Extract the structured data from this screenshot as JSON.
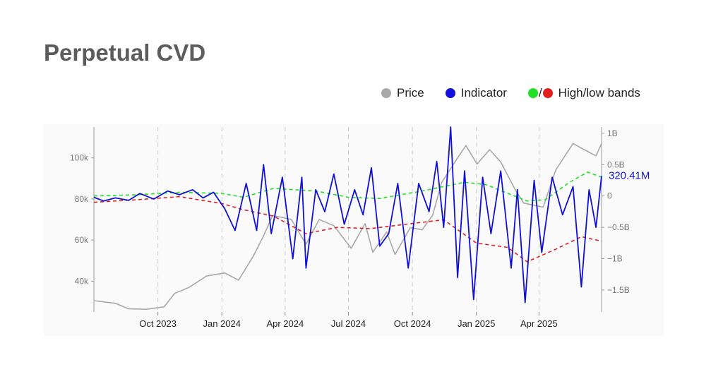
{
  "title": "Perpetual CVD",
  "legend": {
    "price": "Price",
    "indicator": "Indicator",
    "slash": "/",
    "bands": "High/low bands"
  },
  "colors": {
    "price": "#a8a8a8",
    "indicator": "#1010d8",
    "high_band": "#22e022",
    "low_band": "#e02020",
    "title": "#5c5c5c"
  },
  "chart_data": {
    "type": "line",
    "x_start": "2023-07-01",
    "x_end": "2025-06-30",
    "x_ticks": [
      {
        "date": "2023-10-01",
        "label": "Oct 2023"
      },
      {
        "date": "2024-01-01",
        "label": "Jan 2024"
      },
      {
        "date": "2024-04-01",
        "label": "Apr 2024"
      },
      {
        "date": "2024-07-01",
        "label": "Jul 2024"
      },
      {
        "date": "2024-10-01",
        "label": "Oct 2024"
      },
      {
        "date": "2025-01-01",
        "label": "Jan 2025"
      },
      {
        "date": "2025-04-01",
        "label": "Apr 2025"
      }
    ],
    "y_left": {
      "range": [
        25000,
        115000
      ],
      "ticks": [
        {
          "v": 40000,
          "label": "40k"
        },
        {
          "v": 60000,
          "label": "60k"
        },
        {
          "v": 80000,
          "label": "80k"
        },
        {
          "v": 100000,
          "label": "100k"
        }
      ]
    },
    "y_right": {
      "range": [
        -1850000000,
        1100000000
      ],
      "ticks": [
        {
          "v": 1000000000,
          "label": "1B"
        },
        {
          "v": 500000000,
          "label": "0.5B"
        },
        {
          "v": 0,
          "label": "0"
        },
        {
          "v": -500000000,
          "label": "−0.5B"
        },
        {
          "v": -1000000000,
          "label": "−1B"
        },
        {
          "v": -1500000000,
          "label": "−1.5B"
        }
      ]
    },
    "last_value_label": "320.41M",
    "series": [
      {
        "name": "Price",
        "axis": "left",
        "points": [
          [
            "2023-07-01",
            30500
          ],
          [
            "2023-08-01",
            29200
          ],
          [
            "2023-08-20",
            26500
          ],
          [
            "2023-09-15",
            26300
          ],
          [
            "2023-10-10",
            27500
          ],
          [
            "2023-10-25",
            34000
          ],
          [
            "2023-11-15",
            37000
          ],
          [
            "2023-12-10",
            42500
          ],
          [
            "2024-01-05",
            44000
          ],
          [
            "2024-01-25",
            40500
          ],
          [
            "2024-02-15",
            52000
          ],
          [
            "2024-03-01",
            62000
          ],
          [
            "2024-03-14",
            72000
          ],
          [
            "2024-04-10",
            70000
          ],
          [
            "2024-05-01",
            58000
          ],
          [
            "2024-05-20",
            70000
          ],
          [
            "2024-06-10",
            67000
          ],
          [
            "2024-07-05",
            56000
          ],
          [
            "2024-07-25",
            68000
          ],
          [
            "2024-08-05",
            54000
          ],
          [
            "2024-08-25",
            64000
          ],
          [
            "2024-09-06",
            53000
          ],
          [
            "2024-09-28",
            66000
          ],
          [
            "2024-10-15",
            65000
          ],
          [
            "2024-10-30",
            72000
          ],
          [
            "2024-11-12",
            88000
          ],
          [
            "2024-12-05",
            100000
          ],
          [
            "2024-12-17",
            106000
          ],
          [
            "2025-01-02",
            97000
          ],
          [
            "2025-01-20",
            104000
          ],
          [
            "2025-02-05",
            98000
          ],
          [
            "2025-02-25",
            85000
          ],
          [
            "2025-03-10",
            78000
          ],
          [
            "2025-04-07",
            76000
          ],
          [
            "2025-04-25",
            94000
          ],
          [
            "2025-05-20",
            107000
          ],
          [
            "2025-06-05",
            104000
          ],
          [
            "2025-06-22",
            101000
          ],
          [
            "2025-06-30",
            107000
          ]
        ]
      },
      {
        "name": "Indicator",
        "axis": "right",
        "points": [
          [
            "2023-07-01",
            -20000000
          ],
          [
            "2023-07-15",
            -80000000
          ],
          [
            "2023-08-01",
            -30000000
          ],
          [
            "2023-08-20",
            -70000000
          ],
          [
            "2023-09-05",
            40000000
          ],
          [
            "2023-09-25",
            -50000000
          ],
          [
            "2023-10-15",
            80000000
          ],
          [
            "2023-11-01",
            20000000
          ],
          [
            "2023-11-20",
            100000000
          ],
          [
            "2023-12-05",
            -30000000
          ],
          [
            "2023-12-20",
            60000000
          ],
          [
            "2024-01-05",
            -200000000
          ],
          [
            "2024-01-20",
            -550000000
          ],
          [
            "2024-02-05",
            200000000
          ],
          [
            "2024-02-20",
            -550000000
          ],
          [
            "2024-03-01",
            500000000
          ],
          [
            "2024-03-12",
            -600000000
          ],
          [
            "2024-03-28",
            300000000
          ],
          [
            "2024-04-12",
            -1000000000
          ],
          [
            "2024-04-25",
            300000000
          ],
          [
            "2024-05-01",
            -1150000000
          ],
          [
            "2024-05-15",
            100000000
          ],
          [
            "2024-05-28",
            -250000000
          ],
          [
            "2024-06-10",
            350000000
          ],
          [
            "2024-06-25",
            -450000000
          ],
          [
            "2024-07-10",
            100000000
          ],
          [
            "2024-07-22",
            -300000000
          ],
          [
            "2024-08-03",
            450000000
          ],
          [
            "2024-08-15",
            -800000000
          ],
          [
            "2024-08-28",
            -600000000
          ],
          [
            "2024-09-10",
            200000000
          ],
          [
            "2024-09-25",
            -1150000000
          ],
          [
            "2024-10-10",
            200000000
          ],
          [
            "2024-10-25",
            -250000000
          ],
          [
            "2024-11-05",
            550000000
          ],
          [
            "2024-11-15",
            -500000000
          ],
          [
            "2024-11-25",
            1100000000
          ],
          [
            "2024-12-05",
            -1300000000
          ],
          [
            "2024-12-15",
            400000000
          ],
          [
            "2024-12-28",
            -1650000000
          ],
          [
            "2025-01-10",
            300000000
          ],
          [
            "2025-01-22",
            -600000000
          ],
          [
            "2025-02-05",
            400000000
          ],
          [
            "2025-02-20",
            -1150000000
          ],
          [
            "2025-03-01",
            100000000
          ],
          [
            "2025-03-12",
            -1700000000
          ],
          [
            "2025-03-25",
            250000000
          ],
          [
            "2025-04-05",
            -900000000
          ],
          [
            "2025-04-20",
            300000000
          ],
          [
            "2025-05-05",
            -300000000
          ],
          [
            "2025-05-20",
            150000000
          ],
          [
            "2025-06-01",
            -1450000000
          ],
          [
            "2025-06-12",
            100000000
          ],
          [
            "2025-06-22",
            -500000000
          ],
          [
            "2025-06-30",
            320000000
          ]
        ]
      },
      {
        "name": "High band",
        "axis": "right",
        "points": [
          [
            "2023-07-01",
            0
          ],
          [
            "2023-09-01",
            20000000
          ],
          [
            "2023-11-01",
            60000000
          ],
          [
            "2024-01-01",
            40000000
          ],
          [
            "2024-02-01",
            -20000000
          ],
          [
            "2024-03-15",
            120000000
          ],
          [
            "2024-05-15",
            80000000
          ],
          [
            "2024-07-01",
            -20000000
          ],
          [
            "2024-08-15",
            -40000000
          ],
          [
            "2024-10-15",
            80000000
          ],
          [
            "2024-12-15",
            220000000
          ],
          [
            "2025-01-15",
            180000000
          ],
          [
            "2025-03-15",
            -80000000
          ],
          [
            "2025-04-10",
            -60000000
          ],
          [
            "2025-05-15",
            220000000
          ],
          [
            "2025-06-10",
            380000000
          ],
          [
            "2025-06-30",
            300000000
          ]
        ]
      },
      {
        "name": "Low band",
        "axis": "right",
        "points": [
          [
            "2023-07-01",
            -100000000
          ],
          [
            "2023-09-01",
            -60000000
          ],
          [
            "2023-11-01",
            -10000000
          ],
          [
            "2024-01-01",
            -120000000
          ],
          [
            "2024-02-01",
            -220000000
          ],
          [
            "2024-03-15",
            -320000000
          ],
          [
            "2024-05-01",
            -600000000
          ],
          [
            "2024-06-15",
            -500000000
          ],
          [
            "2024-08-01",
            -520000000
          ],
          [
            "2024-10-15",
            -420000000
          ],
          [
            "2024-11-15",
            -380000000
          ],
          [
            "2025-01-01",
            -750000000
          ],
          [
            "2025-02-15",
            -820000000
          ],
          [
            "2025-03-15",
            -1050000000
          ],
          [
            "2025-04-25",
            -850000000
          ],
          [
            "2025-06-01",
            -650000000
          ],
          [
            "2025-06-30",
            -720000000
          ]
        ]
      }
    ]
  }
}
